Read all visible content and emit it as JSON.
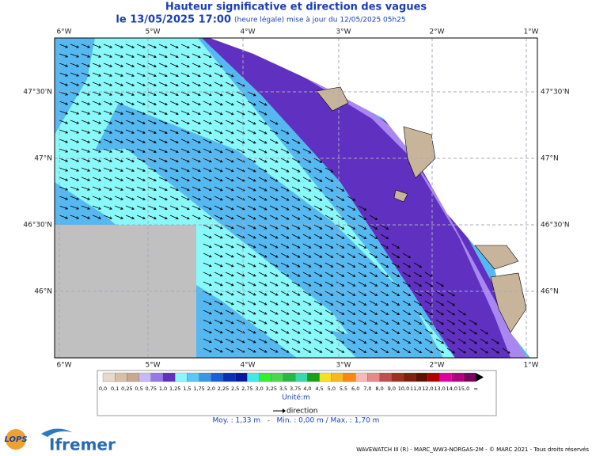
{
  "title": "Hauteur significative et direction des vagues",
  "subtitle": {
    "date": "le 13/05/2025 17:00",
    "note": "(heure légale) mise à jour du 12/05/2025 05h25"
  },
  "lon_labels": [
    "6°W",
    "5°W",
    "4°W",
    "3°W",
    "2°W",
    "1°W"
  ],
  "lat_labels": [
    "47°30'N",
    "47°N",
    "46°30'N",
    "46°N"
  ],
  "colorbar": {
    "labels": [
      "0,0",
      "0,1",
      "0,25",
      "0,5",
      "0,75",
      "1,0",
      "1,25",
      "1,5",
      "1,75",
      "2,0",
      "2,25",
      "2,5",
      "2,75",
      "3,0",
      "3,25",
      "3,5",
      "3,75",
      "4,0",
      "4,5",
      "5,0",
      "5,5",
      "6,0",
      "7,0",
      "8,0",
      "9,0",
      "10,0",
      "11,0",
      "12,0",
      "13,0",
      "14,0",
      "15,0",
      "∞"
    ],
    "colors": [
      "#e8d8c8",
      "#d8c0a8",
      "#c8a890",
      "#c8b8f8",
      "#9878e8",
      "#6030c0",
      "#88f8f8",
      "#58c8f8",
      "#3898e8",
      "#1860d8",
      "#0830b8",
      "#0818a0",
      "#40e8e8",
      "#30f030",
      "#48d848",
      "#28b848",
      "#38d8b0",
      "#18a018",
      "#f8e020",
      "#f8b818",
      "#f88810",
      "#f8b8b8",
      "#e88888",
      "#c05050",
      "#a03020",
      "#802010",
      "#601000",
      "#b00000",
      "#e000a0",
      "#b00080",
      "#800060"
    ],
    "unit": "Unité:m"
  },
  "direction_label": "direction",
  "stats": "Moy. : 1,33 m   -   Min. : 0,00 m / Max. : 1,70 m",
  "logos": {
    "lops": "LOPS",
    "ifremer": "Ifremer"
  },
  "footer": "WAVEWATCH III (R) - MARC_WW3-NORGAS-2M - © MARC 2021 - Tous droits réservés"
}
